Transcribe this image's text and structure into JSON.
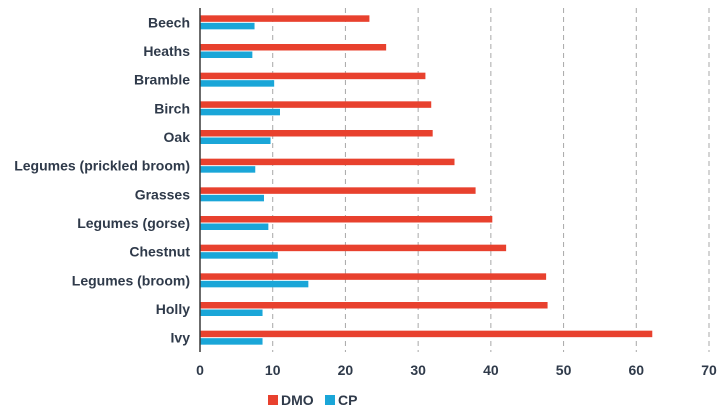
{
  "chart_data": {
    "type": "bar",
    "orientation": "horizontal",
    "title": "",
    "xlabel": "",
    "ylabel": "",
    "categories": [
      "Beech",
      "Heaths",
      "Bramble",
      "Birch",
      "Oak",
      "Legumes (prickled broom)",
      "Grasses",
      "Legumes (gorse)",
      "Chestnut",
      "Legumes (broom)",
      "Holly",
      "Ivy"
    ],
    "series": [
      {
        "name": "DMO",
        "color": "#e8412e",
        "values": [
          23.3,
          25.6,
          31.0,
          31.8,
          32.0,
          35.0,
          37.9,
          40.2,
          42.1,
          47.6,
          47.8,
          62.2
        ]
      },
      {
        "name": "CP",
        "color": "#1aa6d8",
        "values": [
          7.5,
          7.2,
          10.2,
          11.0,
          9.7,
          7.6,
          8.8,
          9.4,
          10.7,
          14.9,
          8.6,
          8.6
        ]
      }
    ],
    "xlim": [
      0,
      70
    ],
    "xticks": [
      "0",
      "10",
      "20",
      "30",
      "40",
      "50",
      "60",
      "70"
    ],
    "grid": "vertical-dashed",
    "legend_position": "bottom"
  }
}
